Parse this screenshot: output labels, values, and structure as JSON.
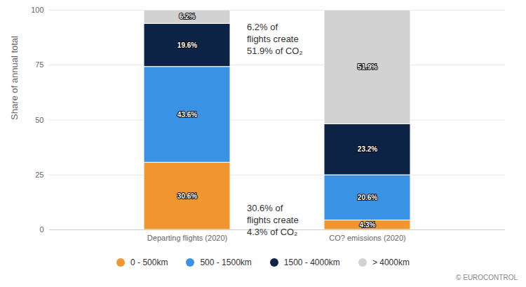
{
  "chart_data": {
    "type": "bar",
    "stacked": true,
    "categories": [
      "Departing flights (2020)",
      "CO? emissions (2020)"
    ],
    "series": [
      {
        "name": "0 - 500km",
        "color": "#f0952f",
        "values": [
          30.6,
          4.3
        ],
        "value_labels": [
          "30.6%",
          "4.3%"
        ]
      },
      {
        "name": "500 - 1500km",
        "color": "#3a92e4",
        "values": [
          43.6,
          20.6
        ],
        "value_labels": [
          "43.6%",
          "20.6%"
        ]
      },
      {
        "name": "1500 - 4000km",
        "color": "#0d2345",
        "values": [
          19.6,
          23.2
        ],
        "value_labels": [
          "19.6%",
          "23.2%"
        ]
      },
      {
        "name": "> 4000km",
        "color": "#d2d2d2",
        "values": [
          6.2,
          51.9
        ],
        "value_labels": [
          "6.2%",
          "51.9%"
        ]
      }
    ],
    "ylabel": "Share of annual total",
    "ylim": [
      0,
      100
    ],
    "yticks": [
      0,
      25,
      50,
      75,
      100
    ],
    "grid": true,
    "data_labels": true,
    "legend": "bottom",
    "annotations": [
      "6.2% of\nflights create\n51.9% of CO₂",
      "30.6% of\nflights create\n4.3% of CO₂"
    ],
    "source": "© EUROCONTROL"
  }
}
